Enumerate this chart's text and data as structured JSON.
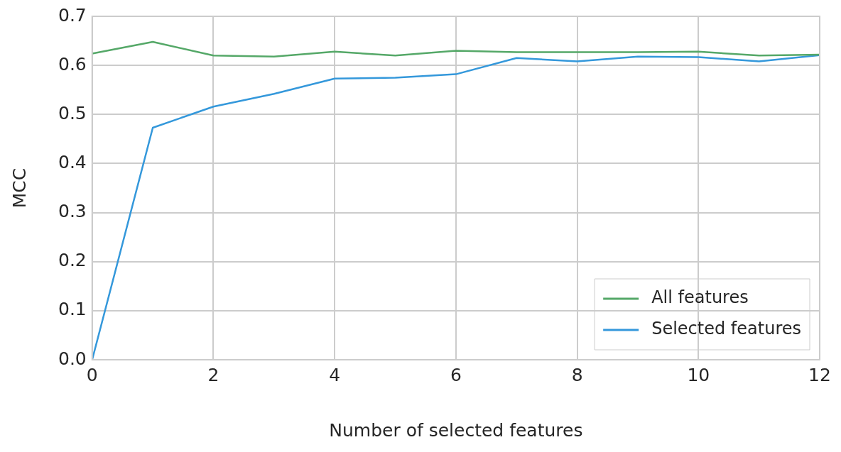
{
  "chart_data": {
    "type": "line",
    "xlabel": "Number of selected features",
    "ylabel": "MCC",
    "x": [
      0,
      1,
      2,
      3,
      4,
      5,
      6,
      7,
      8,
      9,
      10,
      11,
      12
    ],
    "series": [
      {
        "name": "All features",
        "color": "#55a868",
        "values": [
          0.624,
          0.648,
          0.62,
          0.618,
          0.628,
          0.62,
          0.63,
          0.627,
          0.627,
          0.627,
          0.628,
          0.62,
          0.622
        ]
      },
      {
        "name": "Selected features",
        "color": "#3498db",
        "values": [
          0,
          0.473,
          0.516,
          0.542,
          0.573,
          0.575,
          0.582,
          0.615,
          0.608,
          0.618,
          0.617,
          0.608,
          0.621
        ]
      }
    ],
    "xlim": [
      0,
      12
    ],
    "xticks": [
      0,
      2,
      4,
      6,
      8,
      10,
      12
    ],
    "ylim": [
      0,
      0.7
    ],
    "yticks": [
      {
        "value": 0,
        "label": "0.0"
      },
      {
        "value": 0.1,
        "label": "0.1"
      },
      {
        "value": 0.2,
        "label": "0.2"
      },
      {
        "value": 0.3,
        "label": "0.3"
      },
      {
        "value": 0.4,
        "label": "0.4"
      },
      {
        "value": 0.5,
        "label": "0.5"
      },
      {
        "value": 0.6,
        "label": "0.6"
      },
      {
        "value": 0.7,
        "label": "0.7"
      }
    ],
    "grid": true,
    "legend": "bottom right",
    "marker": "none",
    "line_style": "solid"
  }
}
